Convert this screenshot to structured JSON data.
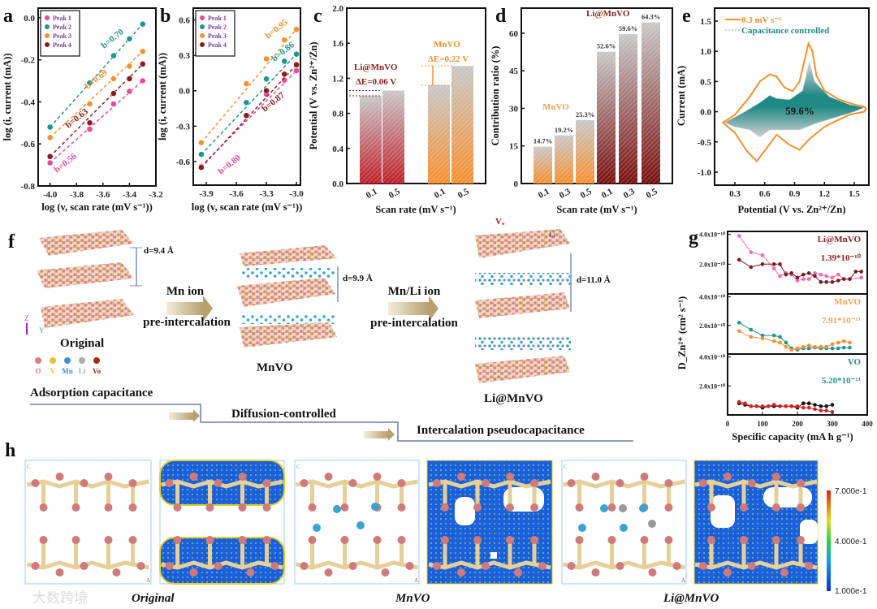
{
  "panel_labels": {
    "a": "a",
    "b": "b",
    "c": "c",
    "d": "d",
    "e": "e",
    "f": "f",
    "g": "g",
    "h": "h"
  },
  "colors": {
    "peak1": "#e8489e",
    "peak2": "#1f9590",
    "peak3": "#f7902e",
    "peak4": "#8e1b1b",
    "li_mnvo": "#8e1b1b",
    "mnvo": "#f7902e",
    "vo": "#1f9590"
  },
  "chart_data": [
    {
      "panel": "a",
      "type": "scatter",
      "xlabel": "log (v, scan rate (mV s⁻¹))",
      "ylabel": "log (i, current (mA))",
      "xlim": [
        -4.09,
        -3.2
      ],
      "ylim": [
        -0.8,
        0.046
      ],
      "xticks": [
        -4.0,
        -3.8,
        -3.6,
        -3.4,
        -3.2
      ],
      "xtick_labels": [
        "-4.0",
        "-3.8",
        "-3.6",
        "-3.4",
        "-3.2"
      ],
      "yticks": [
        0.0,
        -0.2,
        -0.4,
        -0.6,
        -0.8
      ],
      "ytick_labels": [
        "0.0",
        "-0.2",
        "-0.4",
        "-0.6",
        "-0.8"
      ],
      "legend": "top-left",
      "series": [
        {
          "name": "Peak 1",
          "color": "#e8489e",
          "x": [
            -4.0,
            -3.7,
            -3.52,
            -3.4,
            -3.3
          ],
          "y": [
            -0.69,
            -0.53,
            -0.41,
            -0.35,
            -0.3
          ],
          "fit_label": "b=0.56"
        },
        {
          "name": "Peak 2",
          "color": "#1f9590",
          "x": [
            -4.0,
            -3.7,
            -3.52,
            -3.4,
            -3.3
          ],
          "y": [
            -0.52,
            -0.31,
            -0.18,
            -0.1,
            -0.03
          ],
          "fit_label": "b=0.70"
        },
        {
          "name": "Peak 3",
          "color": "#f7902e",
          "x": [
            -4.0,
            -3.7,
            -3.52,
            -3.4,
            -3.3
          ],
          "y": [
            -0.57,
            -0.41,
            -0.29,
            -0.23,
            -0.16
          ],
          "fit_label": "b=0.69"
        },
        {
          "name": "Peak 4",
          "color": "#8e1b1b",
          "x": [
            -4.0,
            -3.7,
            -3.52,
            -3.4,
            -3.3
          ],
          "y": [
            -0.66,
            -0.5,
            -0.36,
            -0.29,
            -0.22
          ],
          "fit_label": "b=0.63"
        }
      ]
    },
    {
      "panel": "b",
      "type": "scatter",
      "xlabel": "log (v, scan rate (mV s⁻¹))",
      "ylabel": "log (i, current (mA))",
      "xlim": [
        -4.03,
        -2.96
      ],
      "ylim": [
        -0.8,
        0.7
      ],
      "xticks": [
        -3.9,
        -3.6,
        -3.3,
        -3.0
      ],
      "xtick_labels": [
        "-3.9",
        "-3.6",
        "-3.3",
        "-3.0"
      ],
      "yticks": [
        0.6,
        0.3,
        0.0,
        -0.3,
        -0.6
      ],
      "ytick_labels": [
        "0.6",
        "0.3",
        "0.0",
        "-0.3",
        "-0.6"
      ],
      "legend": "top-left",
      "series": [
        {
          "name": "Peak 1",
          "color": "#e8489e",
          "x": [
            -3.95,
            -3.5,
            -3.3,
            -3.12,
            -3.0
          ],
          "y": [
            -0.64,
            -0.21,
            -0.03,
            0.09,
            0.17
          ],
          "fit_label": "b=0.80"
        },
        {
          "name": "Peak 2",
          "color": "#1f9590",
          "x": [
            -3.95,
            -3.5,
            -3.3,
            -3.12,
            -3.0
          ],
          "y": [
            -0.54,
            -0.1,
            0.1,
            0.25,
            0.31
          ],
          "fit_label": "b=0.86"
        },
        {
          "name": "Peak 3",
          "color": "#f7902e",
          "x": [
            -3.95,
            -3.5,
            -3.3,
            -3.12,
            -3.0
          ],
          "y": [
            -0.44,
            0.06,
            0.27,
            0.43,
            0.52
          ],
          "fit_label": "b=0.95"
        },
        {
          "name": "Peak 4",
          "color": "#8e1b1b",
          "x": [
            -3.95,
            -3.5,
            -3.3,
            -3.12,
            -3.0
          ],
          "y": [
            -0.65,
            -0.21,
            0.0,
            0.14,
            0.22
          ],
          "fit_label": "b=0.87"
        }
      ]
    },
    {
      "panel": "c",
      "type": "bar",
      "xlabel": "Scan rate (mV s⁻¹)",
      "ylabel": "Potential (V vs. Zn²⁺/Zn)",
      "ylim": [
        0,
        2.0
      ],
      "yticks": [
        0.0,
        0.4,
        0.8,
        1.2,
        1.6,
        2.0
      ],
      "ytick_labels": [
        "0.0",
        "0.4",
        "0.8",
        "1.2",
        "1.6",
        "2.0"
      ],
      "groups": [
        {
          "name": "Li@MnVO",
          "color": "#c0202a",
          "categories": [
            "0.1",
            "0.5"
          ],
          "values": [
            1.0,
            1.06
          ],
          "delta_label": "ΔE=0.06 V"
        },
        {
          "name": "MnVO",
          "color": "#f7902e",
          "categories": [
            "0.1",
            "0.5"
          ],
          "values": [
            1.12,
            1.34
          ],
          "delta_label": "ΔE=0.22 V"
        }
      ]
    },
    {
      "panel": "d",
      "type": "bar",
      "xlabel": "Scan rate (mV s⁻¹)",
      "ylabel": "Contribution ratio (%)",
      "ylim": [
        0,
        70
      ],
      "yticks": [
        0,
        15,
        30,
        45,
        60
      ],
      "ytick_labels": [
        "0",
        "15",
        "30",
        "45",
        "60"
      ],
      "groups": [
        {
          "name": "MnVO",
          "color": "#f7902e",
          "categories": [
            "0.1",
            "0.3",
            "0.5"
          ],
          "values": [
            14.7,
            19.2,
            25.3
          ],
          "value_labels": [
            "14.7%",
            "19.2%",
            "25.3%"
          ]
        },
        {
          "name": "Li@MnVO",
          "color": "#7a1010",
          "categories": [
            "0.1",
            "0.3",
            "0.5"
          ],
          "values": [
            52.6,
            59.6,
            64.3
          ],
          "value_labels": [
            "52.6%",
            "59.6%",
            "64.3%"
          ]
        }
      ]
    },
    {
      "panel": "e",
      "type": "line",
      "xlabel": "Potential (V vs. Zn²⁺/Zn)",
      "ylabel": "Current (mA)",
      "xlim": [
        0.096,
        1.647
      ],
      "ylim": [
        -1.215,
        1.715
      ],
      "xticks": [
        0.3,
        0.6,
        0.9,
        1.2,
        1.5
      ],
      "xtick_labels": [
        "0.3",
        "0.6",
        "0.9",
        "1.2",
        "1.5"
      ],
      "yticks": [
        1.5,
        1.0,
        0.5,
        0.0,
        -0.5,
        -1.0
      ],
      "ytick_labels": [
        "1.5",
        "1.0",
        "0.5",
        "0.0",
        "-0.5",
        "-1.0"
      ],
      "legend": "top-left",
      "annotation": "59.6%",
      "series": [
        {
          "name": "0.3 mV s⁻¹",
          "color": "#f7902e",
          "x": [
            0.18,
            0.3,
            0.45,
            0.55,
            0.65,
            0.72,
            0.8,
            0.88,
            0.95,
            1.0,
            1.04,
            1.08,
            1.12,
            1.2,
            1.35,
            1.5,
            1.6,
            1.62,
            1.6,
            1.45,
            1.32,
            1.2,
            1.05,
            0.95,
            0.85,
            0.72,
            0.62,
            0.52,
            0.42,
            0.3,
            0.18
          ],
          "y": [
            -0.18,
            -0.05,
            0.25,
            0.5,
            0.62,
            0.58,
            0.4,
            0.34,
            0.5,
            0.85,
            1.13,
            1.0,
            0.6,
            0.35,
            0.2,
            0.12,
            0.08,
            0.05,
            0.0,
            -0.05,
            -0.15,
            -0.25,
            -0.45,
            -0.63,
            -0.55,
            -0.38,
            -0.6,
            -0.82,
            -0.65,
            -0.35,
            -0.18
          ]
        },
        {
          "name": "Capacitance controlled",
          "color": "#1f8a86",
          "x": [
            0.2,
            0.4,
            0.55,
            0.65,
            0.72,
            0.85,
            0.98,
            1.05,
            1.1,
            1.25,
            1.45,
            1.6,
            1.5,
            1.3,
            1.1,
            0.95,
            0.8,
            0.65,
            0.55,
            0.45,
            0.3,
            0.2
          ],
          "y": [
            -0.18,
            0.0,
            0.15,
            0.27,
            0.22,
            0.2,
            0.35,
            0.83,
            0.5,
            0.25,
            0.12,
            0.07,
            0.0,
            -0.1,
            -0.2,
            -0.3,
            -0.3,
            -0.3,
            -0.42,
            -0.3,
            -0.25,
            -0.18
          ]
        }
      ]
    },
    {
      "panel": "g",
      "type": "line",
      "xlabel": "Specific capacity (mA h g⁻¹)",
      "ylabel": "D_Zn²⁺ (cm² s⁻¹)",
      "xlim": [
        0,
        400
      ],
      "xticks": [
        0,
        100,
        200,
        300,
        400
      ],
      "xtick_labels": [
        "0",
        "100",
        "200",
        "300",
        "400"
      ],
      "y_unit": "x10⁻¹⁰",
      "ylim": [
        0,
        4.2
      ],
      "yticks": [
        4.0,
        2.0
      ],
      "ytick_labels": [
        "4.0x10⁻¹⁰",
        "2.0x10⁻¹⁰"
      ],
      "subplots": [
        {
          "name": "Li@MnVO",
          "color": "#8e1b1b",
          "value_label": "1.39*10⁻¹⁰",
          "series": [
            {
              "color": "#f06ab8",
              "x": [
                33,
                67,
                100,
                133,
                150,
                167,
                183,
                200,
                217,
                233,
                250,
                267,
                283,
                300,
                317,
                333,
                350,
                383
              ],
              "y": [
                3.9,
                2.8,
                2.6,
                1.7,
                1.2,
                1.4,
                1.3,
                0.9,
                1.0,
                1.0,
                1.4,
                1.3,
                1.2,
                1.1,
                1.3,
                1.0,
                1.0,
                1.1
              ]
            },
            {
              "color": "#7a1a1a",
              "x": [
                33,
                67,
                100,
                133,
                150,
                167,
                183,
                200,
                217,
                233,
                250,
                267,
                283,
                300,
                317,
                333,
                350,
                367,
                383
              ],
              "y": [
                2.3,
                1.8,
                2.0,
                2.0,
                2.0,
                1.3,
                1.4,
                1.1,
                1.3,
                1.4,
                1.2,
                0.8,
                0.8,
                0.8,
                0.9,
                1.0,
                1.0,
                1.5,
                1.5
              ]
            }
          ]
        },
        {
          "name": "MnVO",
          "color": "#f7a050",
          "value_label": "7.91*10⁻¹¹",
          "series": [
            {
              "color": "#1f9590",
              "x": [
                33,
                67,
                100,
                133,
                150,
                167,
                183,
                200,
                217,
                233,
                250,
                267,
                283,
                300,
                317,
                333,
                350
              ],
              "y": [
                2.2,
                1.7,
                1.3,
                1.3,
                1.2,
                0.8,
                0.4,
                0.3,
                0.4,
                0.4,
                0.45,
                0.4,
                0.4,
                0.4,
                0.4,
                0.45,
                0.45
              ]
            },
            {
              "color": "#f7902e",
              "x": [
                33,
                67,
                100,
                133,
                150,
                167,
                183,
                200,
                217,
                233,
                250,
                267,
                283,
                300,
                317,
                333,
                350
              ],
              "y": [
                1.6,
                1.2,
                1.1,
                0.9,
                0.8,
                0.5,
                0.3,
                0.4,
                0.5,
                0.6,
                0.5,
                0.5,
                0.5,
                0.7,
                0.8,
                0.9,
                0.8
              ]
            }
          ]
        },
        {
          "name": "VO",
          "color": "#1f9590",
          "value_label": "5.20*10⁻¹¹",
          "series": [
            {
              "color": "#111111",
              "x": [
                33,
                50,
                67,
                83,
                100,
                117,
                133,
                150,
                167,
                183,
                200,
                217,
                233,
                250,
                267,
                283,
                300
              ],
              "y": [
                0.8,
                0.7,
                0.6,
                0.6,
                0.5,
                0.6,
                0.6,
                0.6,
                0.6,
                0.6,
                0.5,
                0.8,
                0.8,
                0.7,
                0.6,
                0.6,
                0.7
              ]
            },
            {
              "color": "#e02020",
              "x": [
                33,
                50,
                67,
                83,
                100,
                117,
                133,
                150,
                167,
                183,
                200,
                217,
                233,
                250,
                267,
                283,
                300
              ],
              "y": [
                0.9,
                0.8,
                0.6,
                0.6,
                0.6,
                0.6,
                0.7,
                0.6,
                0.6,
                0.6,
                0.6,
                0.5,
                0.5,
                0.4,
                0.3,
                0.3,
                0.2
              ]
            }
          ]
        }
      ]
    }
  ],
  "panel_f": {
    "original_label": "Original",
    "mnvo_label": "MnVO",
    "li_mnvo_label": "Li@MnVO",
    "d_original": "d=9.4 Å",
    "d_mnvo": "d=9.9 Å",
    "d_li_mnvo": "d=11.0 Å",
    "step1_top": "Mn ion",
    "step1_bottom": "pre-intercalation",
    "step2_top": "Mn/Li ion",
    "step2_bottom": "pre-intercalation",
    "vo_marker": "Vₒ",
    "li_marker": "Li",
    "axis_z": "Z",
    "axis_y": "Y",
    "legend": [
      {
        "label": "O",
        "color": "#e07a7a"
      },
      {
        "label": "V",
        "color": "#e8c040"
      },
      {
        "label": "Mn",
        "color": "#3a8fd0"
      },
      {
        "label": "Li",
        "color": "#aaaaaa"
      },
      {
        "label": "Vo",
        "color": "#a03010"
      }
    ],
    "stage1": "Adsorption capacitance",
    "stage2": "Diffusion-controlled",
    "stage3": "Intercalation pseudocapacitance"
  },
  "panel_h": {
    "captions": [
      "Original",
      "MnVO",
      "Li@MnVO"
    ],
    "axis_c": "C",
    "axis_a": "A",
    "colorbar_ticks": [
      "7.000e-1",
      "4.000e-1",
      "1.000e-1"
    ]
  },
  "watermark": "大数跨境"
}
